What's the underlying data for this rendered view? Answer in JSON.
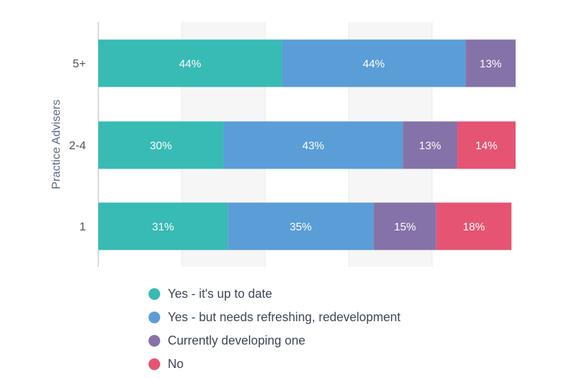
{
  "chart_data": {
    "type": "bar",
    "orientation": "horizontal",
    "stacked": true,
    "ylabel": "Practice Advisers",
    "categories": [
      "5+",
      "2-4",
      "1"
    ],
    "series": [
      {
        "name": "Yes - it's up to date",
        "values": [
          44,
          30,
          31
        ],
        "labels": [
          "44%",
          "30%",
          "31%"
        ],
        "color": "#38bab5"
      },
      {
        "name": "Yes - but needs refreshing, redevelopment",
        "values": [
          44,
          43,
          35
        ],
        "labels": [
          "44%",
          "43%",
          "35%"
        ],
        "color": "#5b9dd6"
      },
      {
        "name": "Currently developing one",
        "values": [
          13,
          13,
          15
        ],
        "labels": [
          "13%",
          "13%",
          "15%"
        ],
        "color": "#8572a9"
      },
      {
        "name": "No",
        "values": [
          0,
          14,
          18
        ],
        "labels": [
          "",
          "14%",
          "18%"
        ],
        "color": "#e55473"
      }
    ],
    "xlim": [
      0,
      100
    ],
    "grid": true,
    "legend_position": "bottom"
  }
}
